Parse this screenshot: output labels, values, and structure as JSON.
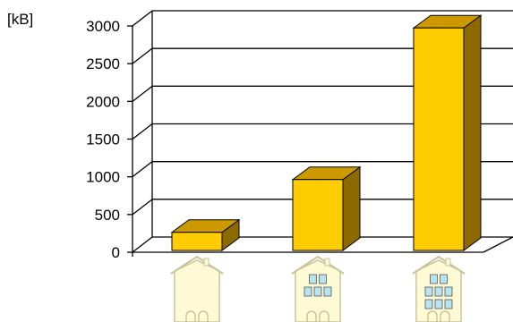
{
  "chart_data": {
    "type": "bar",
    "style": "3d",
    "unit_label": "[kB]",
    "ylim": [
      0,
      3000
    ],
    "y_ticks": [
      "0",
      "500",
      "1000",
      "1500",
      "2000",
      "2500",
      "3000"
    ],
    "grid": true,
    "legend": "none",
    "categories": [
      "small house",
      "medium building",
      "large building"
    ],
    "values": [
      240,
      940,
      2950
    ],
    "colors": {
      "bar_front": "#FFCC00",
      "bar_top": "#CC9900",
      "bar_side": "#8C6A00",
      "building_fill": "#FFFAD6",
      "building_outline": "#C8C49A",
      "window_fill": "#B8E4F0"
    },
    "category_icons": [
      "house-icon",
      "two-storey-building-icon",
      "three-storey-building-icon"
    ]
  }
}
